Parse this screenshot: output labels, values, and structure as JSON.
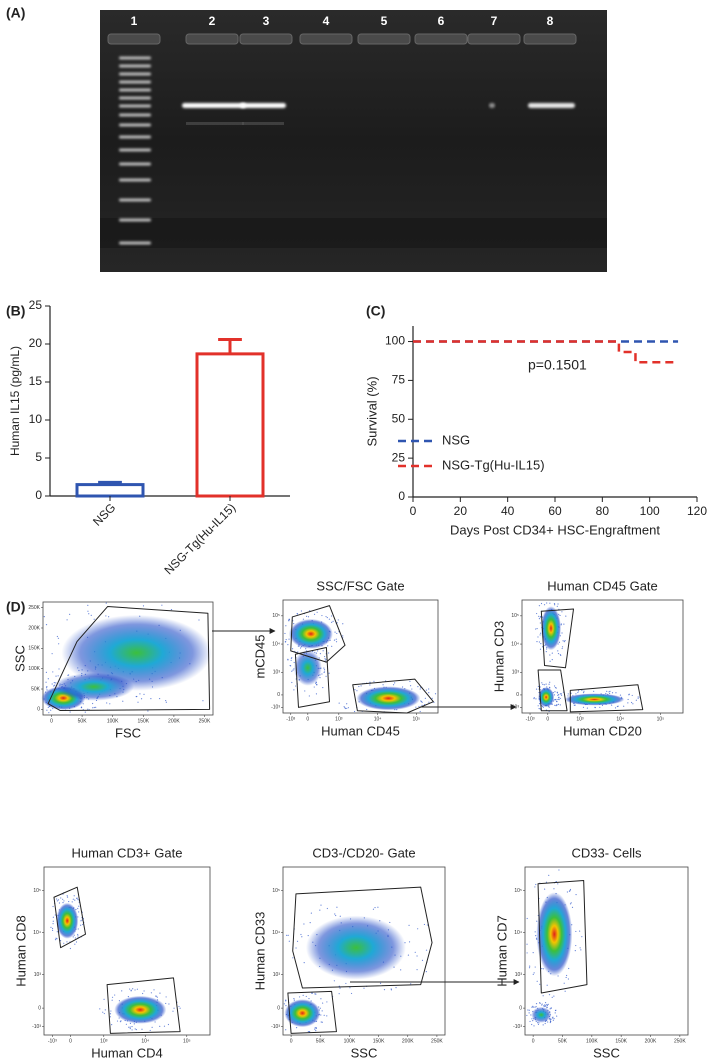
{
  "panel_labels": [
    "(A)",
    "(B)",
    "(C)",
    "(D)"
  ],
  "gel": {
    "lanes": [
      "1",
      "2",
      "3",
      "4",
      "5",
      "6",
      "7",
      "8"
    ]
  },
  "chart_data": [
    {
      "type": "bar",
      "categories": [
        "NSG",
        "NSG-Tg(Hu-IL15)"
      ],
      "values": [
        1.5,
        18.7
      ],
      "errors": [
        0.3,
        1.9
      ],
      "colors": [
        "#2f55b0",
        "#e2312a"
      ],
      "ylabel": "Human IL15 (pg/mL)",
      "ylim": [
        0,
        25
      ],
      "yticks": [
        0,
        5,
        10,
        15,
        20,
        25
      ]
    },
    {
      "type": "line",
      "xlabel": "Days Post CD34+ HSC-Engraftment",
      "ylabel": "Survival (%)",
      "annotation": "p=0.1501",
      "series": [
        {
          "name": "NSG",
          "color": "#2f55b0",
          "x": [
            0,
            112
          ],
          "values": [
            100,
            100
          ]
        },
        {
          "name": "NSG-Tg(Hu-IL15)",
          "color": "#e2312a",
          "x": [
            0,
            87,
            87,
            94,
            94,
            112
          ],
          "values": [
            100,
            100,
            93.3,
            93.3,
            86.7,
            86.7
          ]
        }
      ],
      "xlim": [
        0,
        120
      ],
      "xticks": [
        0,
        20,
        40,
        60,
        80,
        100,
        120
      ],
      "ylim": [
        0,
        110
      ],
      "yticks": [
        0,
        25,
        50,
        75,
        100
      ],
      "legend": "lower left",
      "line_style": "dashed"
    }
  ],
  "flow": {
    "plots": [
      {
        "xlabel": "FSC",
        "ylabel": "SSC",
        "xscale": "linear",
        "yscale": "linear",
        "xticks": [
          "0",
          "50K",
          "100K",
          "150K",
          "200K",
          "250K"
        ],
        "yticks": [
          "0",
          "50K",
          "100K",
          "150K",
          "200K",
          "250K"
        ]
      },
      {
        "title": "SSC/FSC Gate",
        "xlabel": "Human CD45",
        "ylabel": "mCD45",
        "xscale": "log",
        "yscale": "log",
        "xticks": [
          "-10³",
          "0",
          "10³",
          "10⁴",
          "10⁵"
        ],
        "yticks": [
          "-10³",
          "0",
          "10³",
          "10⁴",
          "10⁵"
        ]
      },
      {
        "title": "Human CD45 Gate",
        "xlabel": "Human CD20",
        "ylabel": "Human CD3",
        "xscale": "log",
        "yscale": "log",
        "xticks": [
          "-10³",
          "0",
          "10³",
          "10⁴",
          "10⁵"
        ],
        "yticks": [
          "-10³",
          "0",
          "10³",
          "10⁴",
          "10⁵"
        ]
      },
      {
        "title": "Human CD3+ Gate",
        "xlabel": "Human CD4",
        "ylabel": "Human CD8",
        "xscale": "log",
        "yscale": "log",
        "xticks": [
          "-10³",
          "0",
          "10³",
          "10⁴",
          "10⁵"
        ],
        "yticks": [
          "-10³",
          "0",
          "10³",
          "10⁴",
          "10⁵"
        ]
      },
      {
        "title": "CD3-/CD20- Gate",
        "xlabel": "SSC",
        "ylabel": "Human CD33",
        "xscale": "linear",
        "yscale": "log",
        "xticks": [
          "0",
          "50K",
          "100K",
          "150K",
          "200K",
          "250K"
        ],
        "yticks": [
          "-10³",
          "0",
          "10³",
          "10⁴",
          "10⁵"
        ]
      },
      {
        "title": "CD33- Cells",
        "xlabel": "SSC",
        "ylabel": "Human CD7",
        "xscale": "linear",
        "yscale": "log",
        "xticks": [
          "0",
          "50K",
          "100K",
          "150K",
          "200K",
          "250K"
        ],
        "yticks": [
          "-10³",
          "0",
          "10³",
          "10⁴",
          "10⁵"
        ]
      }
    ]
  }
}
